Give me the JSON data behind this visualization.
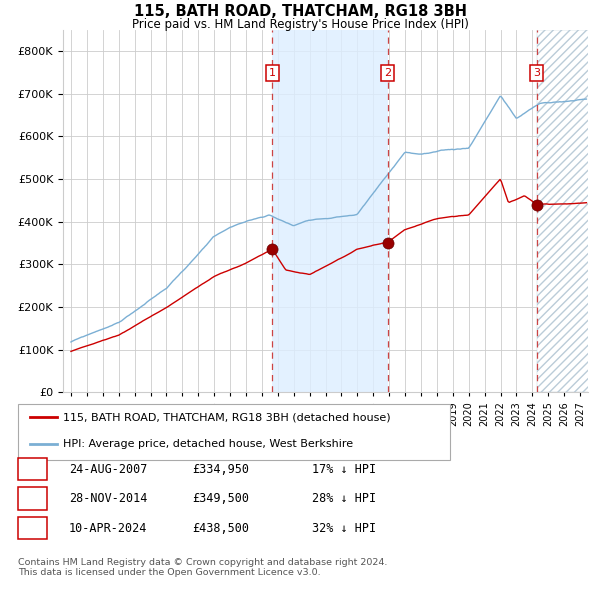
{
  "title": "115, BATH ROAD, THATCHAM, RG18 3BH",
  "subtitle": "Price paid vs. HM Land Registry's House Price Index (HPI)",
  "legend_red": "115, BATH ROAD, THATCHAM, RG18 3BH (detached house)",
  "legend_blue": "HPI: Average price, detached house, West Berkshire",
  "footer1": "Contains HM Land Registry data © Crown copyright and database right 2024.",
  "footer2": "This data is licensed under the Open Government Licence v3.0.",
  "sales": [
    {
      "num": 1,
      "date": "24-AUG-2007",
      "price": 334950,
      "pct": "17%",
      "dir": "↓"
    },
    {
      "num": 2,
      "date": "28-NOV-2014",
      "price": 349500,
      "pct": "28%",
      "dir": "↓"
    },
    {
      "num": 3,
      "date": "10-APR-2024",
      "price": 438500,
      "pct": "32%",
      "dir": "↓"
    }
  ],
  "sale_dates_year": [
    2007.65,
    2014.91,
    2024.28
  ],
  "sale_prices": [
    334950,
    349500,
    438500
  ],
  "hpi_color": "#7bafd4",
  "red_color": "#cc0000",
  "sale_dot_color": "#990000",
  "shade_color": "#ddeeff",
  "grid_color": "#cccccc",
  "vline_red_color": "#dd4444",
  "bg_color": "#ffffff",
  "ylim": [
    0,
    850000
  ],
  "xlim_start": 1994.5,
  "xlim_end": 2027.5,
  "yticks": [
    0,
    100000,
    200000,
    300000,
    400000,
    500000,
    600000,
    700000,
    800000
  ],
  "ytick_labels": [
    "£0",
    "£100K",
    "£200K",
    "£300K",
    "£400K",
    "£500K",
    "£600K",
    "£700K",
    "£800K"
  ]
}
